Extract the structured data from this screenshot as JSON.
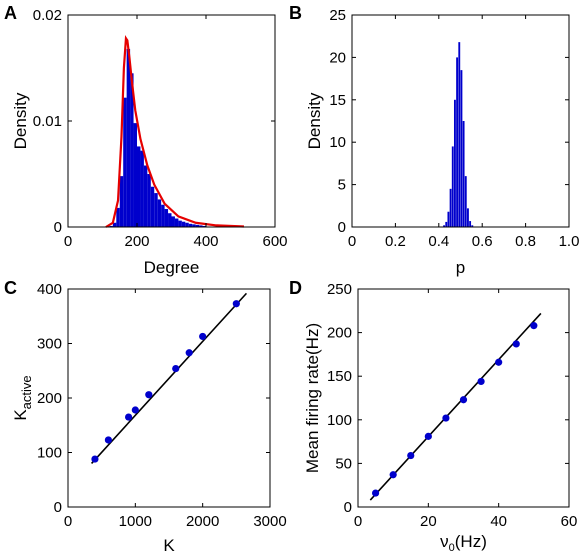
{
  "chart_data": [
    {
      "panel": "A",
      "type": "bar",
      "subtype": "histogram-with-fit",
      "xlabel": "Degree",
      "ylabel": "Density",
      "xlim": [
        0,
        600
      ],
      "ylim": [
        0,
        0.02
      ],
      "xticks": [
        "0",
        "200",
        "400",
        "600"
      ],
      "yticks": [
        "0",
        "0.01",
        "0.02"
      ],
      "bin_width": 10,
      "bins": [
        {
          "x": 120,
          "value": 0.0001
        },
        {
          "x": 130,
          "value": 0.0004
        },
        {
          "x": 140,
          "value": 0.0018
        },
        {
          "x": 150,
          "value": 0.0048
        },
        {
          "x": 160,
          "value": 0.0122
        },
        {
          "x": 170,
          "value": 0.0168
        },
        {
          "x": 180,
          "value": 0.0145
        },
        {
          "x": 190,
          "value": 0.0098
        },
        {
          "x": 200,
          "value": 0.0076
        },
        {
          "x": 210,
          "value": 0.0072
        },
        {
          "x": 220,
          "value": 0.0058
        },
        {
          "x": 230,
          "value": 0.005
        },
        {
          "x": 240,
          "value": 0.0038
        },
        {
          "x": 250,
          "value": 0.0032
        },
        {
          "x": 260,
          "value": 0.0026
        },
        {
          "x": 270,
          "value": 0.0021
        },
        {
          "x": 280,
          "value": 0.0017
        },
        {
          "x": 290,
          "value": 0.0013
        },
        {
          "x": 300,
          "value": 0.001
        },
        {
          "x": 310,
          "value": 0.0008
        },
        {
          "x": 320,
          "value": 0.0006
        },
        {
          "x": 330,
          "value": 0.0005
        },
        {
          "x": 340,
          "value": 0.0004
        },
        {
          "x": 350,
          "value": 0.0003
        },
        {
          "x": 360,
          "value": 0.00025
        },
        {
          "x": 370,
          "value": 0.0002
        },
        {
          "x": 380,
          "value": 0.00015
        },
        {
          "x": 390,
          "value": 0.0001
        }
      ],
      "fit_curve": [
        [
          110,
          0.0
        ],
        [
          130,
          0.0004
        ],
        [
          145,
          0.0025
        ],
        [
          155,
          0.0085
        ],
        [
          162,
          0.015
        ],
        [
          168,
          0.0178
        ],
        [
          172,
          0.0176
        ],
        [
          178,
          0.016
        ],
        [
          185,
          0.0138
        ],
        [
          195,
          0.011
        ],
        [
          210,
          0.0083
        ],
        [
          230,
          0.0058
        ],
        [
          250,
          0.004
        ],
        [
          280,
          0.0022
        ],
        [
          320,
          0.001
        ],
        [
          370,
          0.0004
        ],
        [
          430,
          0.00015
        ],
        [
          510,
          5e-05
        ]
      ],
      "bar_color": "#0000cc",
      "curve_color": "#e60000"
    },
    {
      "panel": "B",
      "type": "bar",
      "subtype": "histogram",
      "xlabel": "p",
      "ylabel": "Density",
      "xlim": [
        0,
        1
      ],
      "ylim": [
        0,
        25
      ],
      "xticks": [
        "0",
        "0.2",
        "0.4",
        "0.6",
        "0.8",
        "1.0"
      ],
      "yticks": [
        "0",
        "5",
        "10",
        "15",
        "20",
        "25"
      ],
      "bin_width": 0.01,
      "bins": [
        {
          "x": 0.42,
          "value": 0.2
        },
        {
          "x": 0.43,
          "value": 0.6
        },
        {
          "x": 0.44,
          "value": 1.8
        },
        {
          "x": 0.45,
          "value": 4.5
        },
        {
          "x": 0.46,
          "value": 9.5
        },
        {
          "x": 0.47,
          "value": 15.0
        },
        {
          "x": 0.48,
          "value": 20.0
        },
        {
          "x": 0.49,
          "value": 21.8
        },
        {
          "x": 0.5,
          "value": 18.5
        },
        {
          "x": 0.51,
          "value": 12.5
        },
        {
          "x": 0.52,
          "value": 6.0
        },
        {
          "x": 0.53,
          "value": 2.2
        },
        {
          "x": 0.54,
          "value": 0.7
        },
        {
          "x": 0.55,
          "value": 0.2
        }
      ],
      "bar_color": "#0000cc"
    },
    {
      "panel": "C",
      "type": "scatter",
      "xlabel": "K",
      "ylabel_main": "K",
      "ylabel_sub": "active",
      "xlim": [
        0,
        3000
      ],
      "ylim": [
        0,
        400
      ],
      "xticks": [
        "0",
        "1000",
        "2000",
        "3000"
      ],
      "yticks": [
        "0",
        "100",
        "200",
        "300",
        "400"
      ],
      "points": [
        {
          "x": 400,
          "y": 88
        },
        {
          "x": 600,
          "y": 123
        },
        {
          "x": 900,
          "y": 165
        },
        {
          "x": 1000,
          "y": 178
        },
        {
          "x": 1200,
          "y": 206
        },
        {
          "x": 1600,
          "y": 254
        },
        {
          "x": 1800,
          "y": 283
        },
        {
          "x": 2000,
          "y": 313
        },
        {
          "x": 2500,
          "y": 373
        }
      ],
      "fit_line": [
        [
          350,
          80
        ],
        [
          2650,
          392
        ]
      ],
      "point_color": "#0000cc",
      "line_color": "#000000"
    },
    {
      "panel": "D",
      "type": "scatter",
      "xlabel_main": "ν",
      "xlabel_sub": "0",
      "xlabel_unit": "(Hz)",
      "ylabel": "Mean firing rate(Hz)",
      "xlim": [
        0,
        60
      ],
      "ylim": [
        0,
        250
      ],
      "xticks": [
        "0",
        "20",
        "40",
        "60"
      ],
      "yticks": [
        "0",
        "50",
        "100",
        "150",
        "200",
        "250"
      ],
      "points": [
        {
          "x": 5,
          "y": 16
        },
        {
          "x": 10,
          "y": 37
        },
        {
          "x": 15,
          "y": 59
        },
        {
          "x": 20,
          "y": 81
        },
        {
          "x": 25,
          "y": 102
        },
        {
          "x": 30,
          "y": 123
        },
        {
          "x": 35,
          "y": 144
        },
        {
          "x": 40,
          "y": 166
        },
        {
          "x": 45,
          "y": 187
        },
        {
          "x": 50,
          "y": 208
        }
      ],
      "fit_line": [
        [
          3.5,
          8
        ],
        [
          52,
          222
        ]
      ],
      "point_color": "#0000cc",
      "line_color": "#000000"
    }
  ]
}
